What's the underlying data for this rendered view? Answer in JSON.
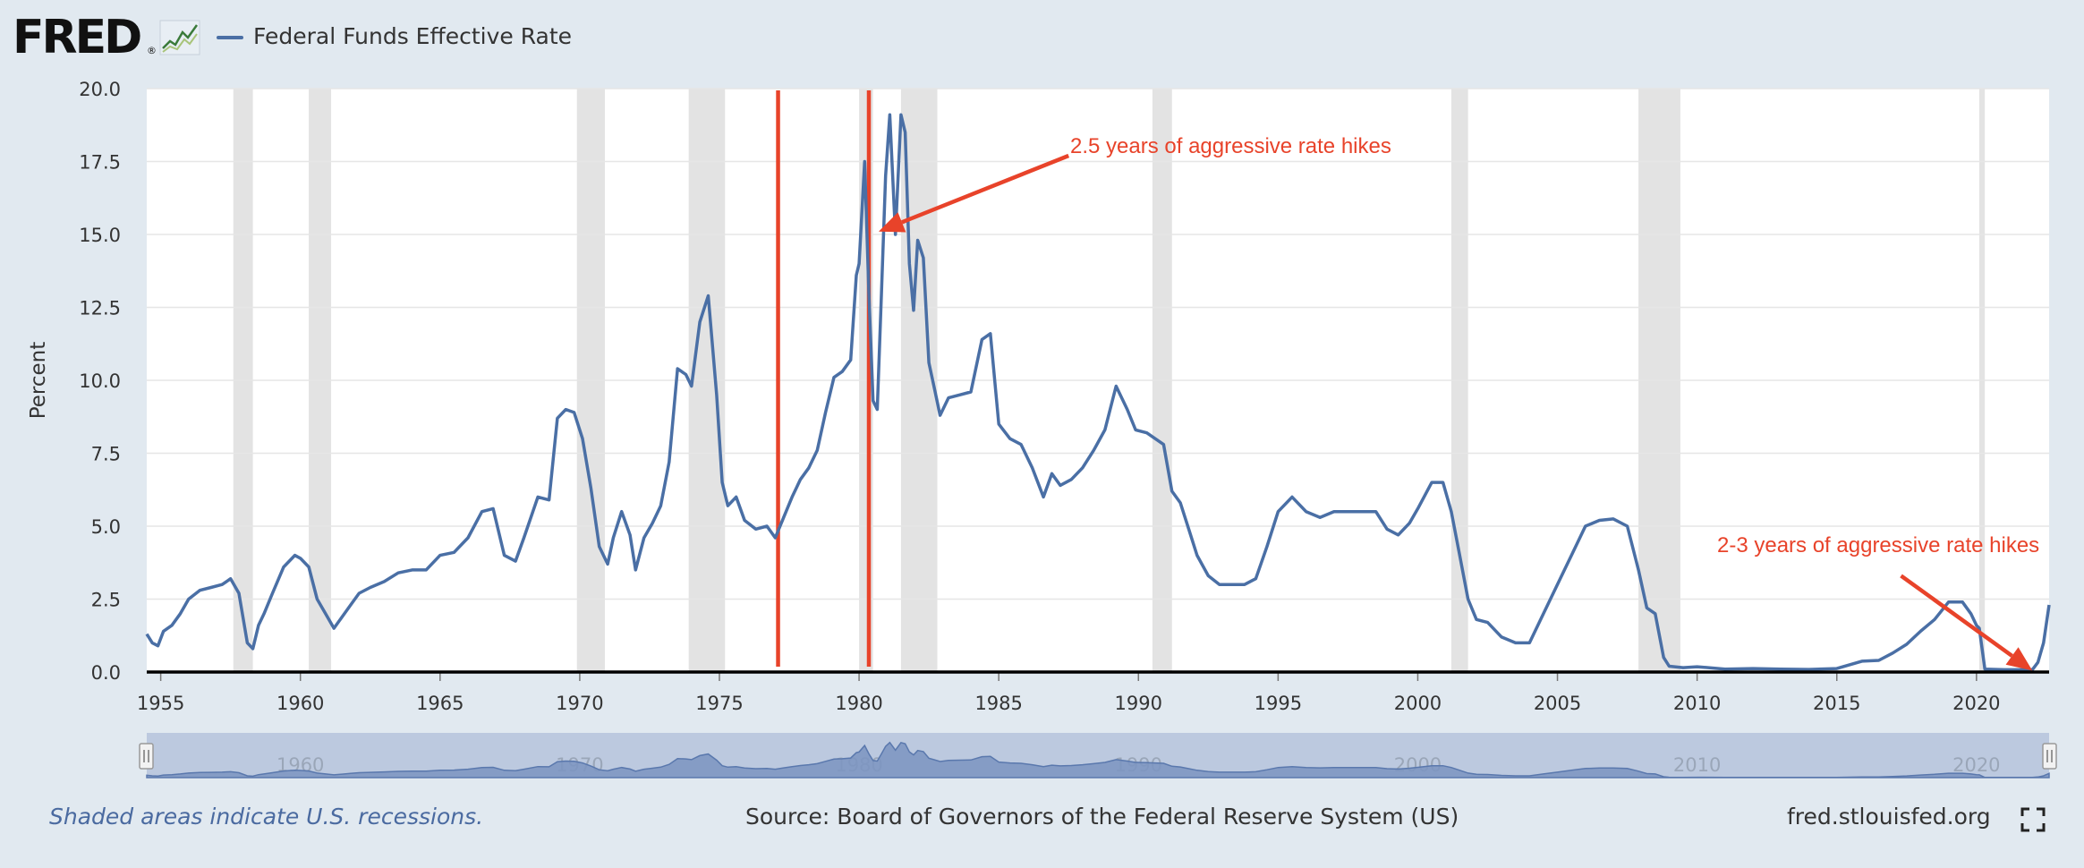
{
  "header": {
    "logo_text": "FRED",
    "logo_mark": "®",
    "logo_icon": "line-chart-icon",
    "series_label": "Federal Funds Effective Rate"
  },
  "footer": {
    "note": "Shaded areas indicate U.S. recessions.",
    "source": "Source: Board of Governors of the Federal Reserve System (US)",
    "site": "fred.stlouisfed.org",
    "fullscreen_icon": "fullscreen-icon"
  },
  "colors": {
    "series": "#4a6fa5",
    "annotation": "#e8432a",
    "recession": "#e3e3e3",
    "background": "#e1e9f0",
    "navigator": "#bcc9df"
  },
  "chart_data": {
    "type": "line",
    "ylabel": "Percent",
    "xlim": [
      1954.5,
      2022.6
    ],
    "ylim": [
      0,
      20
    ],
    "yticks": [
      "0.0",
      "2.5",
      "5.0",
      "7.5",
      "10.0",
      "12.5",
      "15.0",
      "17.5",
      "20.0"
    ],
    "xticks": [
      1955,
      1960,
      1965,
      1970,
      1975,
      1980,
      1985,
      1990,
      1995,
      2000,
      2005,
      2010,
      2015,
      2020
    ],
    "navigator_labels": [
      "1960",
      "1970",
      "1980",
      "1990",
      "2000",
      "2010",
      "2020"
    ],
    "grid": true,
    "legend": "top-left",
    "recessions": [
      [
        1957.6,
        1958.3
      ],
      [
        1960.3,
        1961.1
      ],
      [
        1969.9,
        1970.9
      ],
      [
        1973.9,
        1975.2
      ],
      [
        1980.0,
        1980.5
      ],
      [
        1981.5,
        1982.8
      ],
      [
        1990.5,
        1991.2
      ],
      [
        2001.2,
        2001.8
      ],
      [
        2007.9,
        2009.4
      ],
      [
        2020.1,
        2020.3
      ]
    ],
    "series": [
      {
        "name": "Federal Funds Effective Rate",
        "x": [
          1954.5,
          1954.7,
          1954.9,
          1955.1,
          1955.4,
          1955.7,
          1956.0,
          1956.4,
          1956.8,
          1957.2,
          1957.5,
          1957.8,
          1958.1,
          1958.3,
          1958.5,
          1958.7,
          1959.0,
          1959.4,
          1959.8,
          1960.0,
          1960.3,
          1960.6,
          1960.9,
          1961.2,
          1961.5,
          1961.8,
          1962.1,
          1962.5,
          1963.0,
          1963.5,
          1964.0,
          1964.5,
          1965.0,
          1965.5,
          1966.0,
          1966.5,
          1966.9,
          1967.3,
          1967.7,
          1968.0,
          1968.5,
          1968.9,
          1969.2,
          1969.5,
          1969.8,
          1970.1,
          1970.4,
          1970.7,
          1971.0,
          1971.2,
          1971.5,
          1971.8,
          1972.0,
          1972.3,
          1972.6,
          1972.9,
          1973.2,
          1973.5,
          1973.8,
          1974.0,
          1974.3,
          1974.6,
          1974.9,
          1975.1,
          1975.3,
          1975.6,
          1975.9,
          1976.3,
          1976.7,
          1977.0,
          1977.3,
          1977.6,
          1977.9,
          1978.2,
          1978.5,
          1978.8,
          1979.1,
          1979.4,
          1979.7,
          1979.9,
          1980.0,
          1980.2,
          1980.35,
          1980.5,
          1980.65,
          1980.8,
          1980.95,
          1981.1,
          1981.3,
          1981.5,
          1981.65,
          1981.8,
          1981.95,
          1982.1,
          1982.3,
          1982.5,
          1982.7,
          1982.9,
          1983.2,
          1983.6,
          1984.0,
          1984.4,
          1984.7,
          1985.0,
          1985.4,
          1985.8,
          1986.2,
          1986.6,
          1986.9,
          1987.2,
          1987.6,
          1988.0,
          1988.4,
          1988.8,
          1989.2,
          1989.6,
          1989.9,
          1990.3,
          1990.6,
          1990.9,
          1991.2,
          1991.5,
          1991.8,
          1992.1,
          1992.5,
          1992.9,
          1993.3,
          1993.8,
          1994.2,
          1994.6,
          1995.0,
          1995.5,
          1996.0,
          1996.5,
          1997.0,
          1997.5,
          1998.0,
          1998.5,
          1998.9,
          1999.3,
          1999.7,
          2000.0,
          2000.5,
          2000.9,
          2001.2,
          2001.5,
          2001.8,
          2002.1,
          2002.5,
          2003.0,
          2003.5,
          2004.0,
          2004.5,
          2005.0,
          2005.5,
          2006.0,
          2006.5,
          2007.0,
          2007.5,
          2007.9,
          2008.2,
          2008.5,
          2008.8,
          2009.0,
          2009.5,
          2010.0,
          2011.0,
          2012.0,
          2013.0,
          2014.0,
          2015.0,
          2015.9,
          2016.5,
          2017.0,
          2017.5,
          2018.0,
          2018.5,
          2019.0,
          2019.5,
          2019.8,
          2020.0,
          2020.1,
          2020.3,
          2021.0,
          2021.6,
          2022.0,
          2022.2,
          2022.4,
          2022.6
        ],
        "y": [
          1.3,
          1.0,
          0.9,
          1.4,
          1.6,
          2.0,
          2.5,
          2.8,
          2.9,
          3.0,
          3.2,
          2.7,
          1.0,
          0.8,
          1.6,
          2.0,
          2.7,
          3.6,
          4.0,
          3.9,
          3.6,
          2.5,
          2.0,
          1.5,
          1.9,
          2.3,
          2.7,
          2.9,
          3.1,
          3.4,
          3.5,
          3.5,
          4.0,
          4.1,
          4.6,
          5.5,
          5.6,
          4.0,
          3.8,
          4.6,
          6.0,
          5.9,
          8.7,
          9.0,
          8.9,
          8.0,
          6.3,
          4.3,
          3.7,
          4.6,
          5.5,
          4.7,
          3.5,
          4.6,
          5.1,
          5.7,
          7.2,
          10.4,
          10.2,
          9.8,
          12.0,
          12.9,
          9.5,
          6.5,
          5.7,
          6.0,
          5.2,
          4.9,
          5.0,
          4.6,
          5.3,
          6.0,
          6.6,
          7.0,
          7.6,
          8.9,
          10.1,
          10.3,
          10.7,
          13.6,
          14.0,
          17.5,
          13.0,
          9.3,
          9.0,
          13.0,
          17.0,
          19.1,
          15.0,
          19.1,
          18.5,
          14.0,
          12.4,
          14.8,
          14.2,
          10.6,
          9.7,
          8.8,
          9.4,
          9.5,
          9.6,
          11.4,
          11.6,
          8.5,
          8.0,
          7.8,
          7.0,
          6.0,
          6.8,
          6.4,
          6.6,
          7.0,
          7.6,
          8.3,
          9.8,
          9.0,
          8.3,
          8.2,
          8.0,
          7.8,
          6.2,
          5.8,
          4.9,
          4.0,
          3.3,
          3.0,
          3.0,
          3.0,
          3.2,
          4.3,
          5.5,
          6.0,
          5.5,
          5.3,
          5.5,
          5.5,
          5.5,
          5.5,
          4.9,
          4.7,
          5.1,
          5.6,
          6.5,
          6.5,
          5.5,
          4.0,
          2.5,
          1.8,
          1.7,
          1.2,
          1.0,
          1.0,
          2.0,
          3.0,
          4.0,
          5.0,
          5.2,
          5.25,
          5.0,
          3.5,
          2.2,
          2.0,
          0.5,
          0.2,
          0.15,
          0.18,
          0.1,
          0.12,
          0.1,
          0.09,
          0.12,
          0.37,
          0.4,
          0.65,
          0.95,
          1.4,
          1.8,
          2.4,
          2.4,
          2.0,
          1.6,
          1.5,
          0.1,
          0.08,
          0.08,
          0.08,
          0.33,
          1.0,
          2.3
        ]
      }
    ],
    "annotations": [
      {
        "text": "2.5 years of aggressive rate hikes",
        "arrow_from": [
          1987.5,
          17.7
        ],
        "arrow_to": [
          1980.7,
          15.1
        ]
      },
      {
        "text": "2-3 years of aggressive rate hikes",
        "arrow_from": [
          2017.3,
          3.3
        ],
        "arrow_to": [
          2022.0,
          0.05
        ]
      }
    ],
    "reference_lines": [
      1977.1,
      1980.35
    ]
  }
}
